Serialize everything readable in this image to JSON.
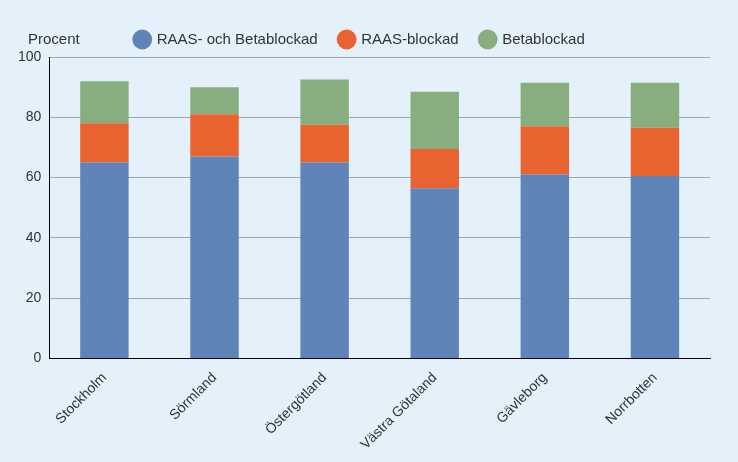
{
  "chart_data": {
    "type": "bar",
    "y_label": "Procent",
    "categories": [
      "Stockholm",
      "Sörmland",
      "Östergötland",
      "Västra Götaland",
      "Gävleborg",
      "Norrbotten"
    ],
    "series": [
      {
        "name": "RAAS- och Betablockad",
        "color": "#5f84b8",
        "values": [
          65,
          67,
          65,
          56.5,
          61,
          60.5
        ]
      },
      {
        "name": "RAAS-blockad",
        "color": "#e8632f",
        "values": [
          13,
          14,
          12.5,
          13,
          16,
          16
        ]
      },
      {
        "name": "Betablockad",
        "color": "#88ae7f",
        "values": [
          14,
          9,
          15,
          19,
          14.5,
          15
        ]
      }
    ],
    "stacked": true,
    "legend": "top",
    "grid": true,
    "ylim": [
      0,
      100
    ],
    "yticks": [
      0,
      20,
      40,
      60,
      80,
      100
    ]
  }
}
